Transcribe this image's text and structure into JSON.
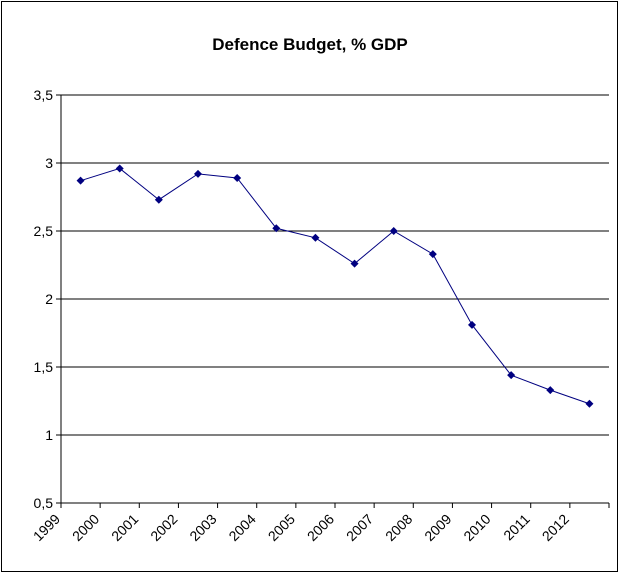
{
  "chart_data": {
    "type": "line",
    "title": "Defence Budget, % GDP",
    "xlabel": "",
    "ylabel": "",
    "categories": [
      "1999",
      "2000",
      "2001",
      "2002",
      "2003",
      "2004",
      "2005",
      "2006",
      "2007",
      "2008",
      "2009",
      "2010",
      "2011",
      "2012"
    ],
    "series": [
      {
        "name": "",
        "values": [
          2.87,
          2.96,
          2.73,
          2.92,
          2.89,
          2.52,
          2.45,
          2.26,
          2.5,
          2.33,
          1.81,
          1.44,
          1.33,
          1.23
        ]
      }
    ],
    "ylim": [
      0.5,
      3.5
    ],
    "yticks": [
      "0,5",
      "1",
      "1,5",
      "2",
      "2,5",
      "3",
      "3,5"
    ],
    "grid": true,
    "legend": "none",
    "colors": {
      "line": "#000080",
      "marker": "#000080",
      "grid": "#000000"
    }
  }
}
